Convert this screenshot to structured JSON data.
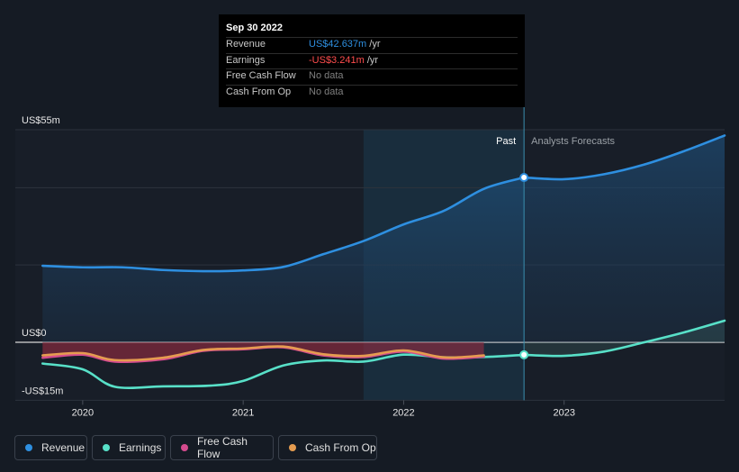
{
  "chart_data": {
    "type": "area",
    "ylim": [
      -15,
      55
    ],
    "y_ticks": [
      {
        "value": 55,
        "label": "US$55m"
      },
      {
        "value": 0,
        "label": "US$0"
      },
      {
        "value": -15,
        "label": "-US$15m"
      }
    ],
    "x_ticks": [
      {
        "value": 2020.0,
        "label": "2020"
      },
      {
        "value": 2021.0,
        "label": "2021"
      },
      {
        "value": 2022.0,
        "label": "2022"
      },
      {
        "value": 2023.0,
        "label": "2023"
      }
    ],
    "xlim": [
      2019.58,
      2024.0
    ],
    "highlight_start": 2021.75,
    "past_end": 2022.75,
    "past_label": "Past",
    "forecast_label": "Analysts Forecasts",
    "series": [
      {
        "name": "Revenue",
        "color": "#2e8fe0",
        "x": [
          2019.75,
          2020.0,
          2020.25,
          2020.5,
          2020.75,
          2021.0,
          2021.25,
          2021.5,
          2021.75,
          2022.0,
          2022.25,
          2022.5,
          2022.75
        ],
        "values": [
          19.8,
          19.4,
          19.4,
          18.7,
          18.4,
          18.6,
          19.5,
          22.8,
          26.2,
          30.5,
          34.0,
          39.7,
          42.637
        ]
      },
      {
        "name": "Revenue forecast",
        "color": "#2e8fe0",
        "x": [
          2022.75,
          2023.0,
          2023.25,
          2023.5,
          2023.75,
          2024.0
        ],
        "values": [
          42.637,
          42.2,
          43.5,
          46.0,
          49.5,
          53.5
        ]
      },
      {
        "name": "Earnings",
        "color": "#58e0c8",
        "x": [
          2019.75,
          2020.0,
          2020.2,
          2020.5,
          2020.8,
          2021.0,
          2021.25,
          2021.5,
          2021.75,
          2022.0,
          2022.25,
          2022.5,
          2022.75
        ],
        "values": [
          -5.5,
          -7.0,
          -11.5,
          -11.4,
          -11.2,
          -10.0,
          -6.0,
          -4.7,
          -5.0,
          -3.2,
          -3.9,
          -3.8,
          -3.241
        ]
      },
      {
        "name": "Earnings forecast",
        "color": "#58e0c8",
        "x": [
          2022.75,
          2023.0,
          2023.25,
          2023.5,
          2023.75,
          2024.0
        ],
        "values": [
          -3.241,
          -3.5,
          -2.4,
          0.0,
          2.6,
          5.6
        ]
      },
      {
        "name": "Free Cash Flow",
        "color": "#d54b8e",
        "x": [
          2019.75,
          2020.0,
          2020.2,
          2020.5,
          2020.75,
          2021.0,
          2021.25,
          2021.5,
          2021.75,
          2022.0,
          2022.25,
          2022.5
        ],
        "values": [
          -4.0,
          -3.2,
          -5.0,
          -4.4,
          -2.2,
          -1.8,
          -1.3,
          -3.4,
          -3.8,
          -2.4,
          -4.2,
          -3.7
        ]
      },
      {
        "name": "Cash From Op",
        "color": "#e59c50",
        "x": [
          2019.75,
          2020.0,
          2020.2,
          2020.5,
          2020.75,
          2021.0,
          2021.25,
          2021.5,
          2021.75,
          2022.0,
          2022.25,
          2022.5
        ],
        "values": [
          -3.4,
          -2.8,
          -4.6,
          -4.0,
          -2.0,
          -1.6,
          -1.1,
          -3.1,
          -3.5,
          -2.1,
          -3.9,
          -3.4
        ]
      }
    ]
  },
  "tooltip": {
    "date": "Sep 30 2022",
    "rows": [
      {
        "label": "Revenue",
        "value": "US$42.637m",
        "suffix": " /yr",
        "color": "#2e8fe0"
      },
      {
        "label": "Earnings",
        "value": "-US$3.241m",
        "suffix": " /yr",
        "color": "#ff4d4d"
      },
      {
        "label": "Free Cash Flow",
        "value": "No data",
        "suffix": "",
        "color": "#7f7f7f"
      },
      {
        "label": "Cash From Op",
        "value": "No data",
        "suffix": "",
        "color": "#7f7f7f"
      }
    ]
  },
  "legend": [
    {
      "label": "Revenue",
      "color": "#2e8fe0"
    },
    {
      "label": "Earnings",
      "color": "#58e0c8"
    },
    {
      "label": "Free Cash Flow",
      "color": "#d54b8e"
    },
    {
      "label": "Cash From Op",
      "color": "#e59c50"
    }
  ]
}
